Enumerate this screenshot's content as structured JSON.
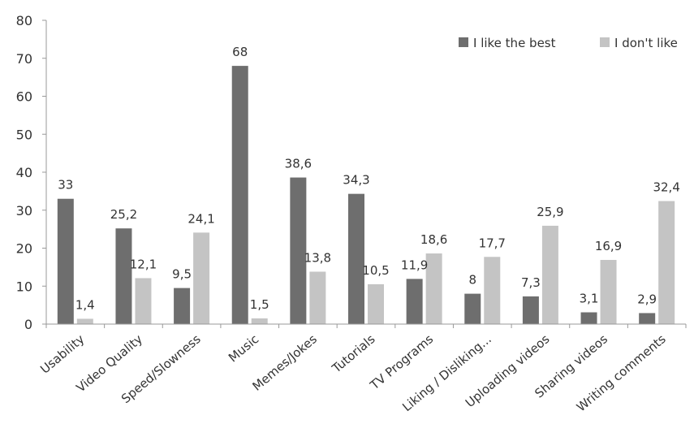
{
  "chart_data": {
    "type": "bar",
    "categories": [
      "Usability",
      "Video Quality",
      "Speed/Slowness",
      "Music",
      "Memes/Jokes",
      "Tutorials",
      "TV Programs",
      "Liking / Disliking...",
      "Uploading videos",
      "Sharing videos",
      "Writing comments"
    ],
    "series": [
      {
        "name": "I like the best",
        "color": "#6e6e6e",
        "values": [
          33,
          25.2,
          9.5,
          68,
          38.6,
          34.3,
          11.9,
          8,
          7.3,
          3.1,
          2.9
        ],
        "labels": [
          "33",
          "25,2",
          "9,5",
          "68",
          "38,6",
          "34,3",
          "11,9",
          "8",
          "7,3",
          "3,1",
          "2,9"
        ]
      },
      {
        "name": "I don't like",
        "color": "#c4c4c4",
        "values": [
          1.4,
          12.1,
          24.1,
          1.5,
          13.8,
          10.5,
          18.6,
          17.7,
          25.9,
          16.9,
          32.4
        ],
        "labels": [
          "1,4",
          "12,1",
          "24,1",
          "1,5",
          "13,8",
          "10,5",
          "18,6",
          "17,7",
          "25,9",
          "16,9",
          "32,4"
        ]
      }
    ],
    "ylim": [
      0,
      80
    ],
    "yticks": [
      "0",
      "10",
      "20",
      "30",
      "40",
      "50",
      "60",
      "70",
      "80"
    ],
    "grid": false,
    "legend": "top-right",
    "title": "",
    "xlabel": "",
    "ylabel": ""
  }
}
